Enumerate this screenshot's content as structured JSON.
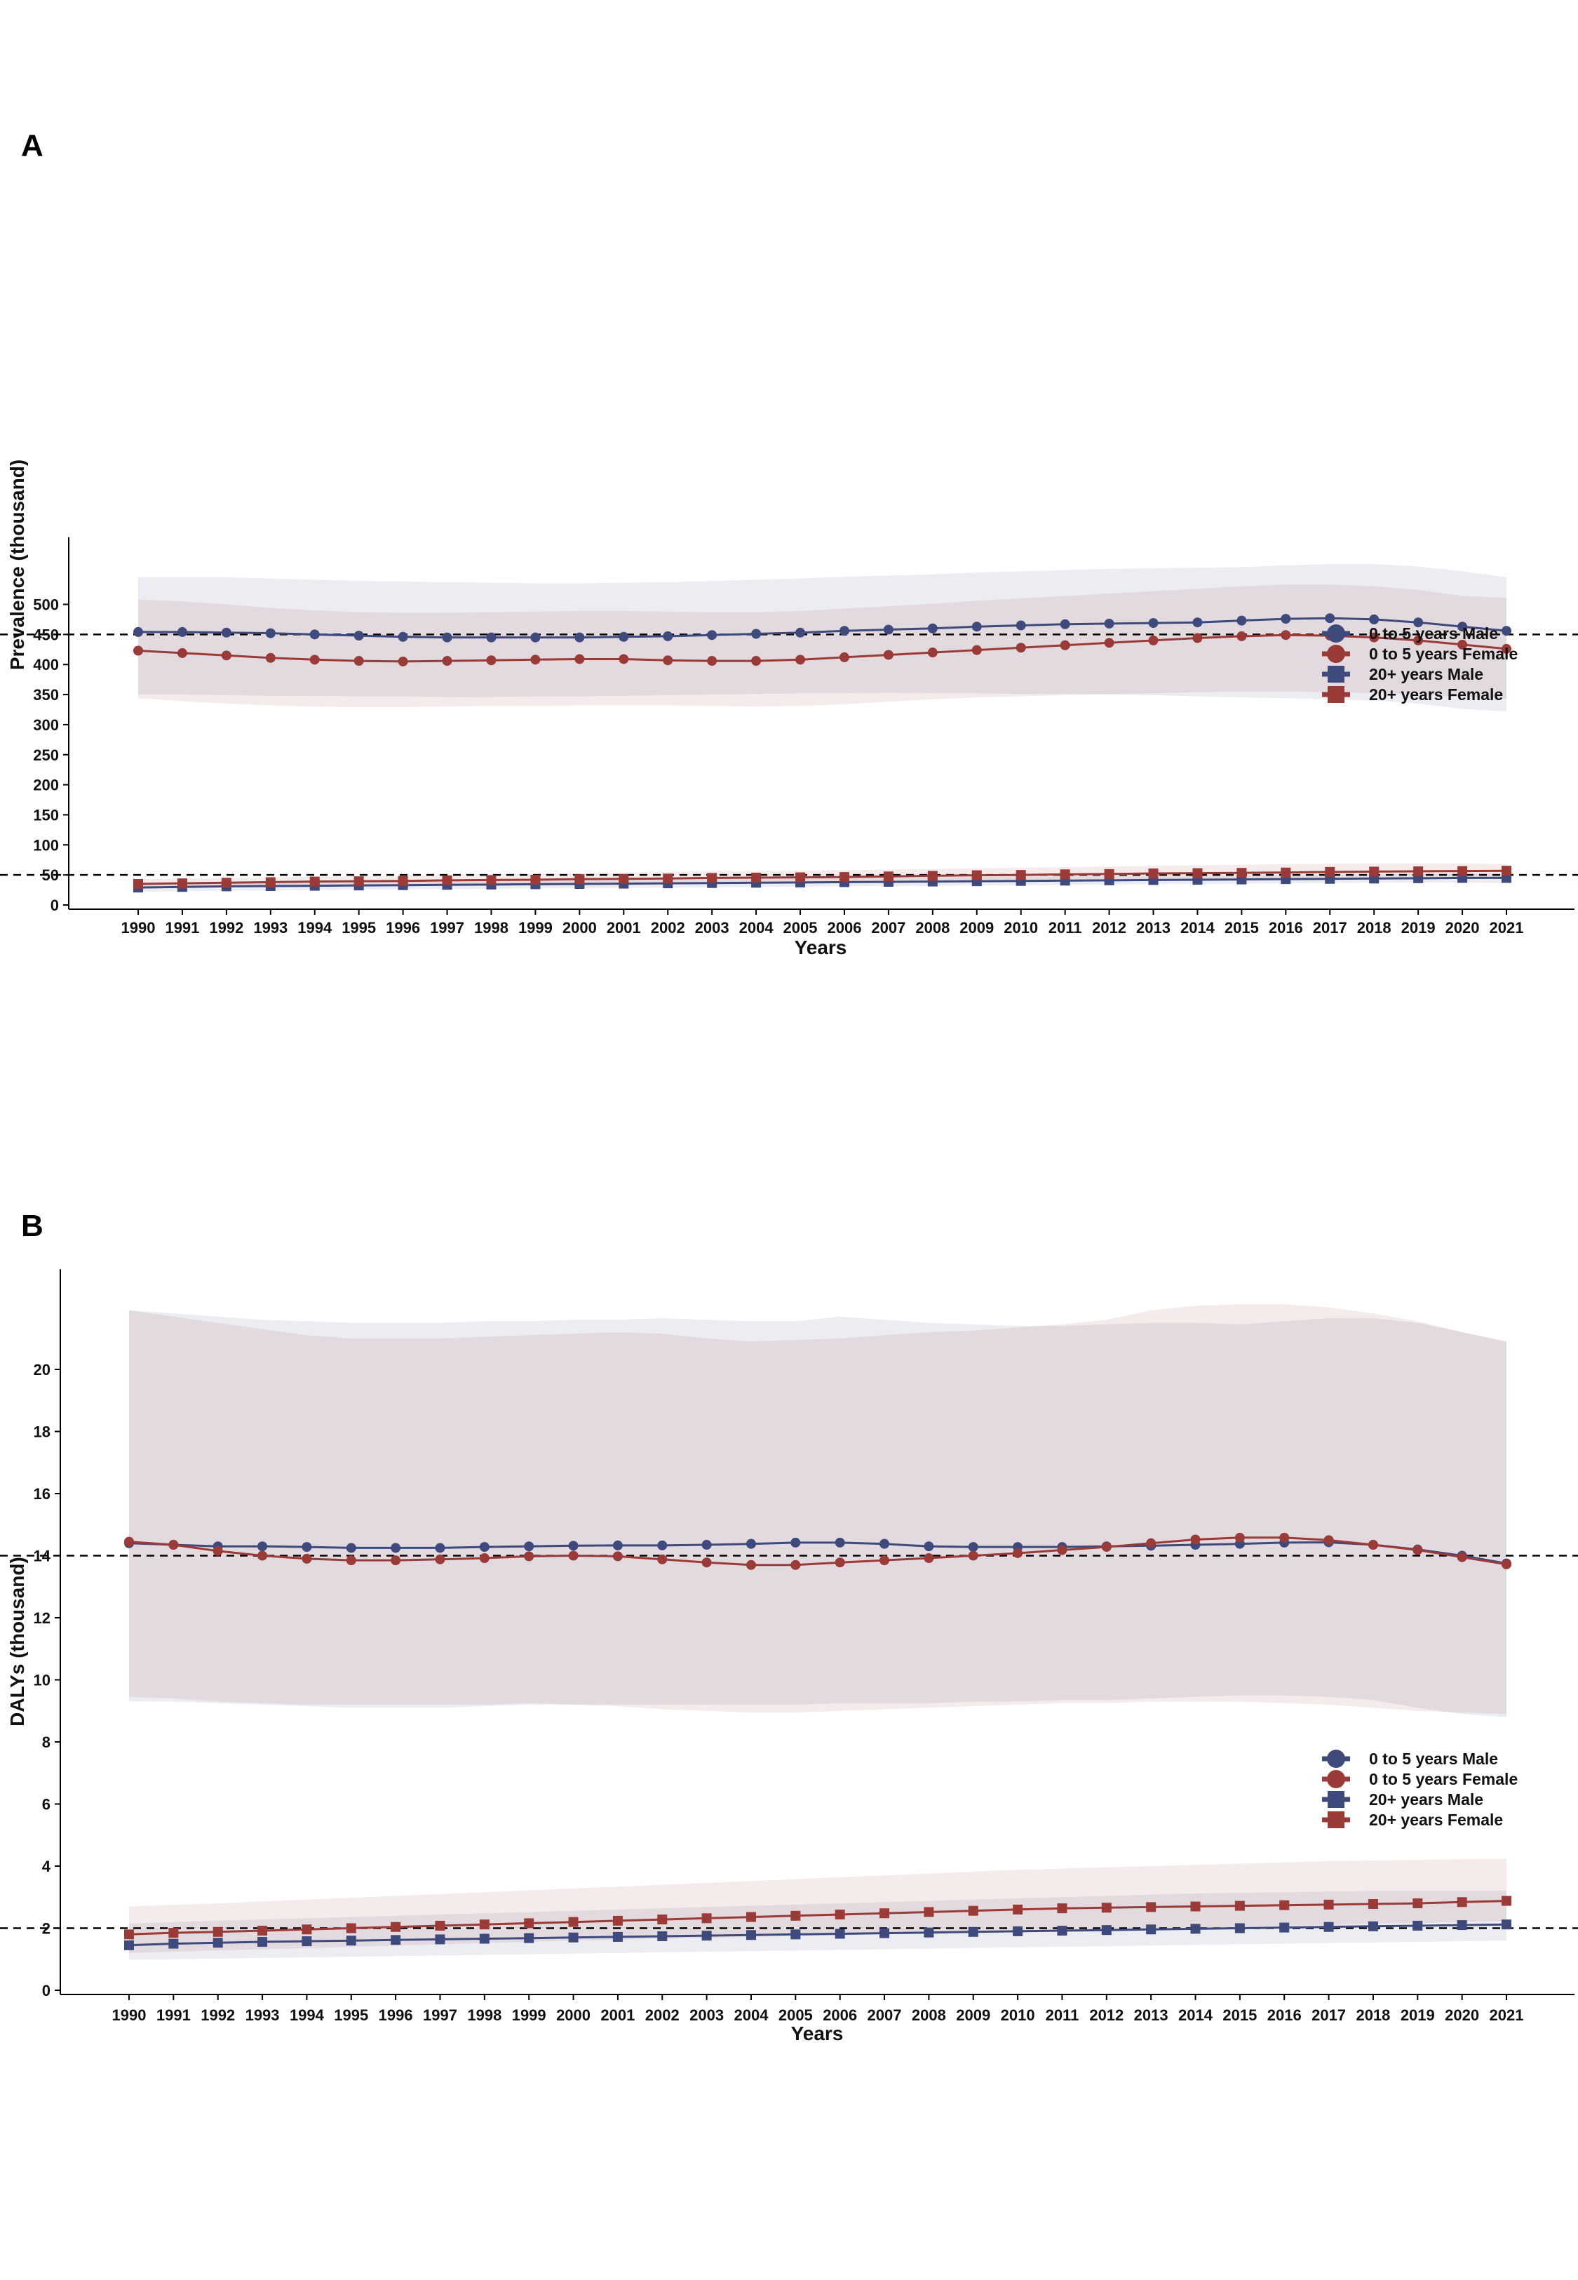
{
  "chart_data": [
    {
      "type": "line",
      "panel_label": "A",
      "xlabel": "Years",
      "ylabel": "Prevalence (thousand)",
      "categories": [
        "1990",
        "1991",
        "1992",
        "1993",
        "1994",
        "1995",
        "1996",
        "1997",
        "1998",
        "1999",
        "2000",
        "2001",
        "2002",
        "2003",
        "2004",
        "2005",
        "2006",
        "2007",
        "2008",
        "2009",
        "2010",
        "2011",
        "2012",
        "2013",
        "2014",
        "2015",
        "2016",
        "2017",
        "2018",
        "2019",
        "2020",
        "2021"
      ],
      "yticks": [
        0,
        50,
        100,
        150,
        200,
        250,
        300,
        350,
        400,
        450,
        500
      ],
      "ylim": [
        0,
        600
      ],
      "reference_lines": [
        450,
        50
      ],
      "legend": [
        "0 to 5 years Male",
        "0 to 5 years Female",
        "20+ years Male",
        "20+ years Female"
      ],
      "colors": {
        "male": "#3e4a7c",
        "female": "#9a3b38"
      },
      "series": [
        {
          "name": "0 to 5 years Male",
          "color": "#3e4a7c",
          "marker": "circle",
          "values": [
            454,
            454,
            453,
            452,
            450,
            448,
            446,
            445,
            445,
            445,
            445,
            446,
            447,
            449,
            451,
            453,
            456,
            458,
            460,
            463,
            465,
            467,
            468,
            469,
            470,
            473,
            476,
            477,
            475,
            470,
            463,
            456
          ],
          "upper": [
            545,
            545,
            545,
            543,
            541,
            539,
            538,
            537,
            536,
            535,
            535,
            536,
            537,
            539,
            541,
            543,
            546,
            548,
            550,
            553,
            555,
            557,
            559,
            560,
            561,
            562,
            565,
            567,
            567,
            563,
            555,
            545
          ],
          "lower": [
            350,
            350,
            349,
            348,
            348,
            347,
            347,
            346,
            346,
            347,
            347,
            348,
            349,
            350,
            351,
            352,
            352,
            353,
            352,
            352,
            351,
            351,
            350,
            349,
            347,
            345,
            344,
            342,
            340,
            335,
            326,
            322
          ]
        },
        {
          "name": "0 to 5 years Female",
          "color": "#9a3b38",
          "marker": "circle",
          "values": [
            423,
            419,
            415,
            411,
            408,
            406,
            405,
            406,
            407,
            408,
            409,
            409,
            407,
            406,
            406,
            408,
            412,
            416,
            420,
            424,
            428,
            432,
            436,
            440,
            444,
            447,
            449,
            448,
            445,
            440,
            433,
            426
          ],
          "upper": [
            508,
            505,
            500,
            494,
            490,
            487,
            486,
            486,
            487,
            488,
            489,
            489,
            488,
            487,
            487,
            489,
            493,
            497,
            501,
            506,
            510,
            514,
            518,
            522,
            526,
            530,
            533,
            533,
            530,
            524,
            514,
            511
          ],
          "lower": [
            344,
            339,
            335,
            332,
            330,
            329,
            329,
            330,
            331,
            331,
            332,
            332,
            332,
            331,
            330,
            331,
            334,
            338,
            342,
            345,
            347,
            349,
            351,
            352,
            354,
            355,
            355,
            354,
            352,
            350,
            346,
            343
          ]
        },
        {
          "name": "20+ years Male",
          "color": "#3e4a7c",
          "marker": "square",
          "values": [
            29,
            30,
            31,
            31.5,
            32,
            32.5,
            33,
            33.5,
            34,
            34.5,
            35,
            35.5,
            36,
            36.5,
            37,
            37.5,
            38,
            38.5,
            39,
            39.5,
            40,
            40.5,
            41,
            41.5,
            42,
            42.5,
            43,
            43.5,
            44,
            44.5,
            45,
            45
          ],
          "upper": [
            36,
            37,
            38,
            38.5,
            39,
            39.5,
            40,
            40.5,
            41,
            41.5,
            42,
            42.5,
            43,
            43.5,
            44,
            44.5,
            45,
            45.5,
            46,
            46.5,
            47,
            47.5,
            48,
            48.5,
            49,
            49.5,
            50,
            50.5,
            51,
            51.5,
            52,
            52
          ],
          "lower": [
            22,
            23,
            24,
            24.5,
            25,
            25.5,
            26,
            26.5,
            27,
            27.5,
            28,
            28.5,
            29,
            29.5,
            30,
            30.5,
            31,
            31.5,
            32,
            32.5,
            33,
            33.5,
            34,
            34.5,
            35,
            35.5,
            36,
            36.5,
            37,
            37.5,
            37,
            36
          ]
        },
        {
          "name": "20+ years Female",
          "color": "#9a3b38",
          "marker": "square",
          "values": [
            35,
            36,
            37,
            38,
            39,
            39.5,
            40,
            41,
            41.5,
            42,
            43,
            43.5,
            44,
            45,
            45.5,
            46,
            46.5,
            47.5,
            48.5,
            49.5,
            50,
            51,
            51.5,
            52.5,
            53,
            53.5,
            54,
            55,
            55.5,
            56,
            56.5,
            57
          ],
          "upper": [
            43,
            44,
            45,
            46,
            47,
            48,
            49,
            50,
            51,
            52,
            53,
            54,
            55,
            56,
            56.5,
            57,
            58,
            59,
            60,
            61,
            62,
            63,
            64,
            65,
            66,
            67,
            68,
            68.5,
            69,
            69,
            69,
            68
          ],
          "lower": [
            28,
            29,
            30,
            31,
            32,
            32.5,
            33,
            34,
            34.5,
            35,
            36,
            36.5,
            37,
            38,
            38.5,
            39,
            39.5,
            40,
            40.5,
            41,
            41.5,
            42,
            42.5,
            43,
            43.5,
            44,
            44,
            44.5,
            45,
            45,
            45,
            45
          ]
        }
      ]
    },
    {
      "type": "line",
      "panel_label": "B",
      "xlabel": "Years",
      "ylabel": "DALYs (thousand)",
      "categories": [
        "1990",
        "1991",
        "1992",
        "1993",
        "1994",
        "1995",
        "1996",
        "1997",
        "1998",
        "1999",
        "2000",
        "2001",
        "2002",
        "2003",
        "2004",
        "2005",
        "2006",
        "2007",
        "2008",
        "2009",
        "2010",
        "2011",
        "2012",
        "2013",
        "2014",
        "2015",
        "2016",
        "2017",
        "2018",
        "2019",
        "2020",
        "2021"
      ],
      "yticks": [
        0,
        2,
        4,
        6,
        8,
        10,
        12,
        14,
        16,
        18,
        20
      ],
      "ylim": [
        0,
        23
      ],
      "reference_lines": [
        14,
        2
      ],
      "legend": [
        "0 to 5 years Male",
        "0 to 5 years Female",
        "20+ years Male",
        "20+ years Female"
      ],
      "colors": {
        "male": "#3e4a7c",
        "female": "#9a3b38"
      },
      "series": [
        {
          "name": "0 to 5 years Male",
          "color": "#3e4a7c",
          "marker": "circle",
          "values": [
            14.4,
            14.35,
            14.3,
            14.3,
            14.28,
            14.25,
            14.25,
            14.25,
            14.28,
            14.3,
            14.32,
            14.33,
            14.33,
            14.35,
            14.38,
            14.42,
            14.42,
            14.38,
            14.3,
            14.28,
            14.28,
            14.28,
            14.3,
            14.32,
            14.35,
            14.38,
            14.42,
            14.43,
            14.35,
            14.2,
            14.0,
            13.75
          ],
          "upper": [
            21.9,
            21.8,
            21.7,
            21.6,
            21.55,
            21.5,
            21.5,
            21.5,
            21.55,
            21.55,
            21.6,
            21.6,
            21.65,
            21.6,
            21.55,
            21.55,
            21.7,
            21.6,
            21.5,
            21.45,
            21.4,
            21.4,
            21.45,
            21.5,
            21.5,
            21.45,
            21.55,
            21.65,
            21.65,
            21.5,
            21.2,
            20.9
          ],
          "lower": [
            9.3,
            9.3,
            9.25,
            9.2,
            9.15,
            9.1,
            9.1,
            9.1,
            9.15,
            9.2,
            9.2,
            9.2,
            9.2,
            9.2,
            9.2,
            9.2,
            9.25,
            9.25,
            9.25,
            9.3,
            9.3,
            9.35,
            9.35,
            9.4,
            9.45,
            9.5,
            9.5,
            9.45,
            9.35,
            9.1,
            8.9,
            8.8
          ]
        },
        {
          "name": "0 to 5 years Female",
          "color": "#9a3b38",
          "marker": "circle",
          "values": [
            14.45,
            14.35,
            14.15,
            14.0,
            13.9,
            13.85,
            13.85,
            13.88,
            13.92,
            13.98,
            14.0,
            13.98,
            13.88,
            13.78,
            13.7,
            13.7,
            13.78,
            13.85,
            13.92,
            14.0,
            14.08,
            14.18,
            14.28,
            14.4,
            14.52,
            14.58,
            14.58,
            14.5,
            14.35,
            14.18,
            13.95,
            13.72
          ],
          "upper": [
            21.9,
            21.7,
            21.5,
            21.3,
            21.1,
            21.0,
            21.0,
            21.0,
            21.05,
            21.1,
            21.15,
            21.2,
            21.15,
            21.0,
            20.9,
            20.95,
            21.0,
            21.1,
            21.2,
            21.25,
            21.35,
            21.45,
            21.6,
            21.9,
            22.05,
            22.1,
            22.1,
            22.0,
            21.8,
            21.55,
            21.2,
            20.9
          ],
          "lower": [
            9.45,
            9.4,
            9.3,
            9.25,
            9.2,
            9.2,
            9.2,
            9.2,
            9.2,
            9.25,
            9.2,
            9.15,
            9.05,
            9.0,
            8.95,
            8.95,
            9.0,
            9.05,
            9.1,
            9.15,
            9.2,
            9.25,
            9.25,
            9.3,
            9.3,
            9.3,
            9.25,
            9.2,
            9.1,
            9.0,
            8.95,
            8.9
          ]
        },
        {
          "name": "20+ years Male",
          "color": "#3e4a7c",
          "marker": "square",
          "values": [
            1.45,
            1.5,
            1.53,
            1.56,
            1.58,
            1.6,
            1.62,
            1.64,
            1.66,
            1.68,
            1.7,
            1.72,
            1.74,
            1.76,
            1.78,
            1.8,
            1.82,
            1.84,
            1.86,
            1.88,
            1.9,
            1.92,
            1.94,
            1.96,
            1.98,
            2.0,
            2.02,
            2.04,
            2.06,
            2.08,
            2.1,
            2.12
          ],
          "upper": [
            2.15,
            2.2,
            2.24,
            2.28,
            2.32,
            2.36,
            2.4,
            2.44,
            2.48,
            2.52,
            2.56,
            2.6,
            2.64,
            2.68,
            2.72,
            2.76,
            2.8,
            2.84,
            2.88,
            2.92,
            2.96,
            3.0,
            3.04,
            3.08,
            3.12,
            3.14,
            3.16,
            3.18,
            3.2,
            3.2,
            3.2,
            3.2
          ],
          "lower": [
            0.98,
            1.0,
            1.02,
            1.04,
            1.06,
            1.08,
            1.1,
            1.12,
            1.14,
            1.16,
            1.18,
            1.2,
            1.22,
            1.24,
            1.26,
            1.28,
            1.3,
            1.32,
            1.34,
            1.36,
            1.38,
            1.4,
            1.42,
            1.44,
            1.46,
            1.48,
            1.5,
            1.52,
            1.54,
            1.56,
            1.58,
            1.6
          ]
        },
        {
          "name": "20+ years Female",
          "color": "#9a3b38",
          "marker": "square",
          "values": [
            1.8,
            1.85,
            1.88,
            1.92,
            1.96,
            2.0,
            2.04,
            2.08,
            2.12,
            2.16,
            2.2,
            2.24,
            2.28,
            2.32,
            2.36,
            2.4,
            2.44,
            2.48,
            2.52,
            2.56,
            2.6,
            2.64,
            2.66,
            2.68,
            2.7,
            2.72,
            2.74,
            2.76,
            2.78,
            2.8,
            2.84,
            2.88
          ],
          "upper": [
            2.7,
            2.75,
            2.8,
            2.86,
            2.92,
            2.98,
            3.04,
            3.1,
            3.16,
            3.22,
            3.28,
            3.34,
            3.4,
            3.46,
            3.52,
            3.58,
            3.64,
            3.7,
            3.76,
            3.82,
            3.88,
            3.92,
            3.96,
            4.0,
            4.04,
            4.08,
            4.12,
            4.16,
            4.18,
            4.2,
            4.22,
            4.24
          ],
          "lower": [
            1.2,
            1.24,
            1.28,
            1.32,
            1.36,
            1.4,
            1.44,
            1.48,
            1.52,
            1.56,
            1.6,
            1.63,
            1.66,
            1.69,
            1.72,
            1.75,
            1.78,
            1.81,
            1.84,
            1.87,
            1.9,
            1.93,
            1.96,
            1.99,
            2.02,
            2.05,
            2.08,
            2.11,
            2.14,
            2.17,
            2.2,
            2.23
          ]
        }
      ]
    }
  ]
}
